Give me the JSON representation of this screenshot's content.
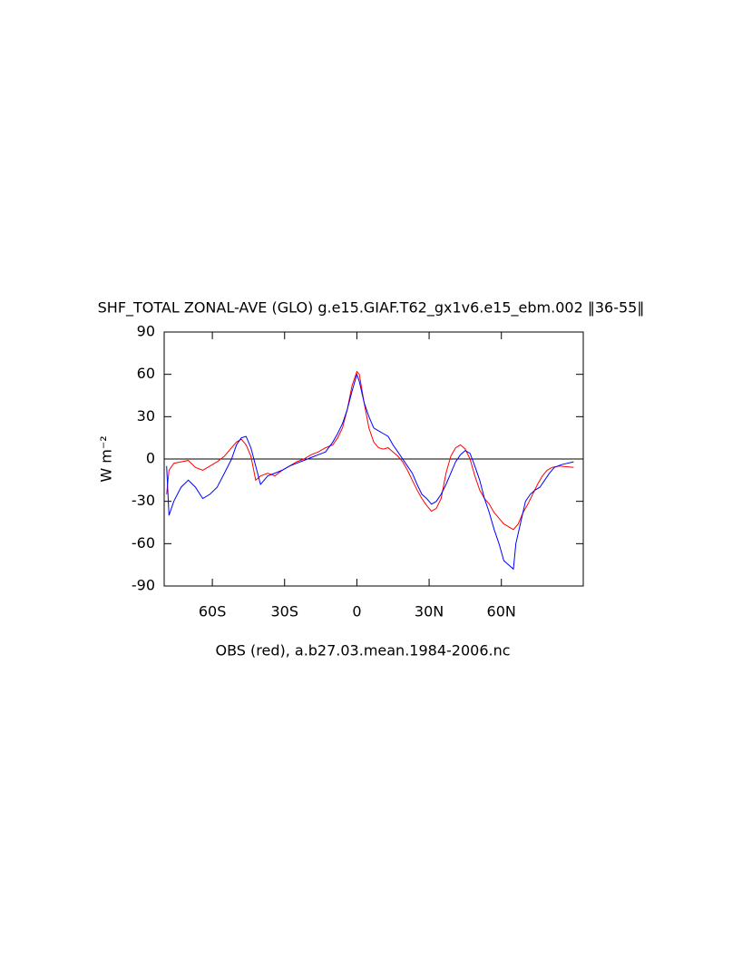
{
  "chart_data": {
    "type": "line",
    "title": "SHF_TOTAL ZONAL-AVE (GLO) g.e15.GIAF.T62_gx1v6.e15_ebm.002 ‖36-55‖",
    "xlabel": "OBS (red), a.b27.03.mean.1984-2006.nc",
    "ylabel": "W m⁻²",
    "xlim": [
      -80,
      94
    ],
    "ylim": [
      -90,
      90
    ],
    "xticks": [
      {
        "value": -60,
        "label": "60S"
      },
      {
        "value": -30,
        "label": "30S"
      },
      0,
      {
        "value": 30,
        "label": "30N"
      },
      {
        "value": 60,
        "label": "60N"
      }
    ],
    "yticks": [
      -90,
      -60,
      -30,
      0,
      30,
      60,
      90
    ],
    "zero_line": true,
    "series": [
      {
        "name": "OBS",
        "color": "#ff0000",
        "x": [
          -79,
          -78,
          -76,
          -73,
          -70,
          -67,
          -64,
          -61,
          -58,
          -55,
          -52,
          -50,
          -48,
          -46,
          -44,
          -42,
          -40,
          -37,
          -34,
          -31,
          -28,
          -25,
          -22,
          -19,
          -16,
          -13,
          -10,
          -8,
          -6,
          -4,
          -2,
          0,
          1,
          3,
          5,
          7,
          9,
          11,
          13,
          15,
          17,
          19,
          21,
          23,
          25,
          27,
          29,
          31,
          33,
          35,
          37,
          39,
          41,
          43,
          45,
          47,
          49,
          51,
          53,
          55,
          57,
          59,
          61,
          63,
          65,
          67,
          69,
          71,
          73,
          75,
          77,
          79,
          81,
          84,
          90
        ],
        "values": [
          -25,
          -8,
          -3,
          -2,
          -1,
          -6,
          -8,
          -5,
          -2,
          2,
          8,
          12,
          14,
          10,
          2,
          -15,
          -12,
          -10,
          -12,
          -8,
          -5,
          -2,
          0,
          3,
          5,
          8,
          10,
          15,
          22,
          35,
          52,
          62,
          60,
          40,
          22,
          12,
          8,
          7,
          8,
          5,
          2,
          -2,
          -8,
          -15,
          -22,
          -28,
          -33,
          -37,
          -35,
          -28,
          -10,
          2,
          8,
          10,
          7,
          0,
          -12,
          -22,
          -28,
          -32,
          -38,
          -42,
          -46,
          -48,
          -50,
          -46,
          -38,
          -32,
          -25,
          -18,
          -12,
          -8,
          -6,
          -5,
          -6
        ]
      },
      {
        "name": "a.b27.03.mean.1984-2006.nc",
        "color": "#0000ff",
        "x": [
          -79,
          -78,
          -76,
          -73,
          -70,
          -67,
          -64,
          -61,
          -58,
          -55,
          -52,
          -50,
          -48,
          -46,
          -44,
          -42,
          -40,
          -37,
          -34,
          -31,
          -28,
          -25,
          -22,
          -19,
          -16,
          -13,
          -10,
          -8,
          -6,
          -4,
          -2,
          0,
          1,
          3,
          5,
          7,
          9,
          11,
          13,
          15,
          17,
          19,
          21,
          23,
          25,
          27,
          29,
          31,
          33,
          35,
          37,
          39,
          41,
          43,
          45,
          47,
          49,
          51,
          53,
          55,
          57,
          59,
          61,
          63,
          65,
          66,
          68,
          70,
          72,
          74,
          76,
          78,
          80,
          82,
          85,
          90
        ],
        "values": [
          -5,
          -40,
          -30,
          -20,
          -15,
          -20,
          -28,
          -25,
          -20,
          -10,
          0,
          10,
          15,
          16,
          8,
          -5,
          -18,
          -12,
          -10,
          -8,
          -5,
          -3,
          -1,
          1,
          3,
          5,
          12,
          18,
          25,
          35,
          48,
          60,
          55,
          40,
          30,
          22,
          20,
          18,
          16,
          10,
          5,
          0,
          -5,
          -10,
          -18,
          -25,
          -28,
          -32,
          -30,
          -25,
          -18,
          -10,
          -2,
          3,
          6,
          4,
          -5,
          -15,
          -28,
          -38,
          -50,
          -60,
          -72,
          -75,
          -78,
          -60,
          -45,
          -30,
          -25,
          -22,
          -20,
          -15,
          -10,
          -6,
          -4,
          -2
        ]
      }
    ]
  }
}
